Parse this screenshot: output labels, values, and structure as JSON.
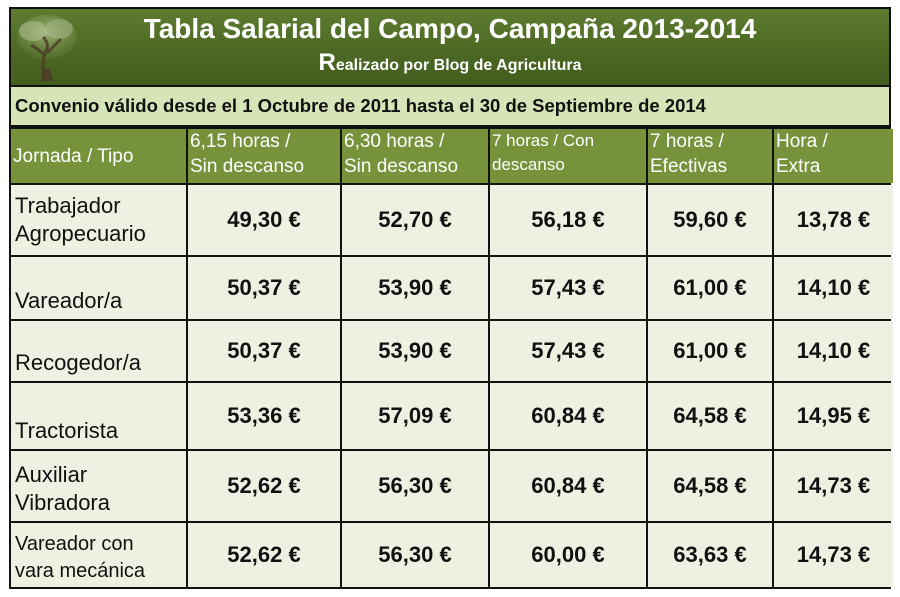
{
  "title": "Tabla Salarial del Campo, Campaña 2013-2014",
  "subtitle_initial": "R",
  "subtitle_rest": "ealizado por Blog de Agricultura",
  "convenio": "Convenio válido desde el 1 Octubre de 2011 hasta el 30 de Septiembre de 2014",
  "headers": [
    {
      "line1": "Jornada / Tipo",
      "line2": ""
    },
    {
      "line1": "6,15 horas /",
      "line2": "Sin descanso"
    },
    {
      "line1": "6,30 horas /",
      "line2": "Sin descanso"
    },
    {
      "line1": "7 horas / Con",
      "line2": "descanso"
    },
    {
      "line1": "7 horas /",
      "line2": "Efectivas"
    },
    {
      "line1": "Hora /",
      "line2": "Extra"
    }
  ],
  "rows": [
    {
      "label1": "Trabajador",
      "label2": "Agropecuario",
      "values": [
        "49,30 €",
        "52,70 €",
        "56,18 €",
        "59,60 €",
        "13,78 €"
      ]
    },
    {
      "label1": "",
      "label2": "Vareador/a",
      "values": [
        "50,37 €",
        "53,90 €",
        "57,43 €",
        "61,00 €",
        "14,10 €"
      ]
    },
    {
      "label1": "",
      "label2": "Recogedor/a",
      "values": [
        "50,37 €",
        "53,90 €",
        "57,43 €",
        "61,00 €",
        "14,10 €"
      ]
    },
    {
      "label1": "",
      "label2": "Tractorista",
      "values": [
        "53,36 €",
        "57,09 €",
        "60,84 €",
        "64,58 €",
        "14,95 €"
      ]
    },
    {
      "label1": "Auxiliar",
      "label2": "Vibradora",
      "values": [
        "52,62 €",
        "56,30 €",
        "60,84 €",
        "64,58 €",
        "14,73 €"
      ]
    },
    {
      "label1": "Vareador con",
      "label2": "vara mecánica",
      "values": [
        "52,62 €",
        "56,30 €",
        "60,00 €",
        "63,63 €",
        "14,73 €"
      ]
    }
  ]
}
